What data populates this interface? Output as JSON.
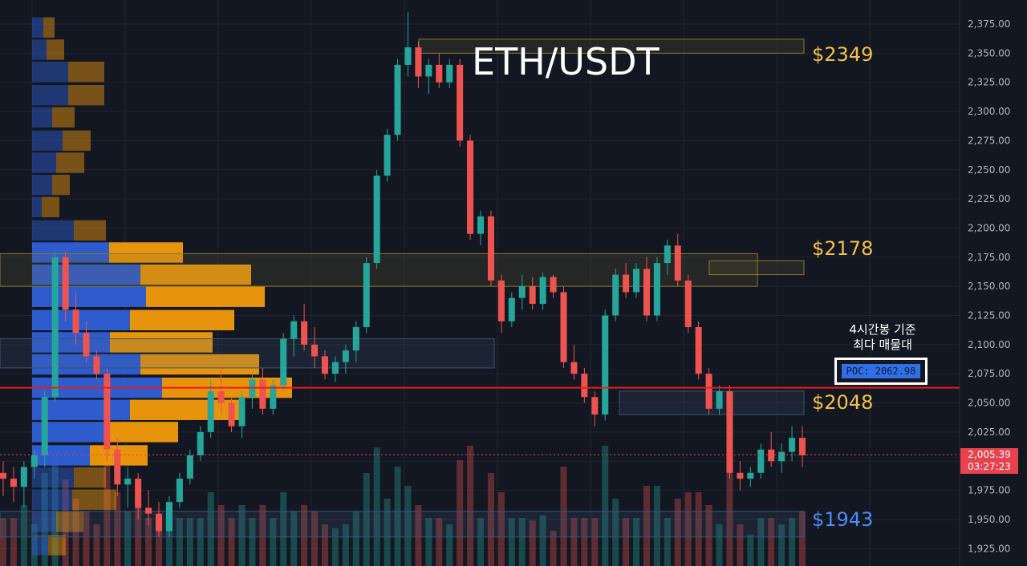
{
  "title": "ETH/USDT",
  "colors": {
    "background": "#131722",
    "grid": "#1f2431",
    "up": "#26a69a",
    "down": "#ef5350",
    "profile_buy": "#2f5fd8",
    "profile_sell": "#f29a0c",
    "poc_line": "#e81c1c",
    "level_gold": "#f5c042",
    "level_blue": "#4d8cf5",
    "axis_text": "#b2b5be"
  },
  "levels": [
    {
      "label": "$2349",
      "price": 2349,
      "color": "#f5c042"
    },
    {
      "label": "$2178",
      "price": 2178,
      "color": "#f5c042"
    },
    {
      "label": "$2048",
      "price": 2048,
      "color": "#f5c042"
    },
    {
      "label": "$1943",
      "price": 1943,
      "color": "#4d8cf5"
    }
  ],
  "poc": {
    "note_line1": "4시간봉 기준",
    "note_line2": "최다 매물대",
    "label": "POC: 2062.98",
    "price": 2062.98
  },
  "current": {
    "price_label": "2,005.39",
    "countdown": "03:27:23",
    "price": 2005.39
  },
  "chart_data": {
    "type": "candlestick",
    "title": "ETH/USDT",
    "ylim": [
      1915,
      2390
    ],
    "y_ticks": [
      "2,375.00",
      "2,350.00",
      "2,325.00",
      "2,300.00",
      "2,275.00",
      "2,250.00",
      "2,225.00",
      "2,200.00",
      "2,175.00",
      "2,150.00",
      "2,125.00",
      "2,100.00",
      "2,075.00",
      "2,050.00",
      "2,025.00",
      "2,000.00",
      "1,975.00",
      "1,950.00",
      "1,925.00"
    ],
    "y_tick_values": [
      2375,
      2350,
      2325,
      2300,
      2275,
      2250,
      2225,
      2200,
      2175,
      2150,
      2125,
      2100,
      2075,
      2050,
      2025,
      2000,
      1975,
      1950,
      1925
    ],
    "grid": true,
    "candles": [
      [
        1990,
        2000,
        1970,
        1985
      ],
      [
        1985,
        1995,
        1965,
        1978
      ],
      [
        1978,
        2000,
        1960,
        1995
      ],
      [
        1995,
        2010,
        1985,
        2005
      ],
      [
        2005,
        2060,
        1995,
        2055
      ],
      [
        2055,
        2180,
        2050,
        2175
      ],
      [
        2175,
        2180,
        2120,
        2130
      ],
      [
        2130,
        2145,
        2100,
        2110
      ],
      [
        2110,
        2120,
        2085,
        2090
      ],
      [
        2090,
        2095,
        2070,
        2075
      ],
      [
        2075,
        2080,
        2000,
        2010
      ],
      [
        2010,
        2020,
        1970,
        1980
      ],
      [
        1980,
        1995,
        1960,
        1985
      ],
      [
        1985,
        1990,
        1950,
        1960
      ],
      [
        1960,
        1975,
        1945,
        1955
      ],
      [
        1955,
        1965,
        1935,
        1940
      ],
      [
        1940,
        1970,
        1935,
        1965
      ],
      [
        1965,
        1990,
        1960,
        1985
      ],
      [
        1985,
        2010,
        1980,
        2005
      ],
      [
        2005,
        2030,
        2000,
        2025
      ],
      [
        2025,
        2070,
        2020,
        2060
      ],
      [
        2060,
        2080,
        2040,
        2050
      ],
      [
        2050,
        2055,
        2025,
        2030
      ],
      [
        2030,
        2060,
        2020,
        2055
      ],
      [
        2055,
        2075,
        2045,
        2070
      ],
      [
        2070,
        2080,
        2040,
        2045
      ],
      [
        2045,
        2070,
        2040,
        2065
      ],
      [
        2065,
        2110,
        2060,
        2105
      ],
      [
        2105,
        2125,
        2090,
        2120
      ],
      [
        2120,
        2135,
        2095,
        2100
      ],
      [
        2100,
        2115,
        2080,
        2090
      ],
      [
        2090,
        2095,
        2070,
        2075
      ],
      [
        2075,
        2090,
        2068,
        2085
      ],
      [
        2085,
        2100,
        2075,
        2095
      ],
      [
        2095,
        2120,
        2085,
        2115
      ],
      [
        2115,
        2175,
        2110,
        2170
      ],
      [
        2170,
        2250,
        2165,
        2245
      ],
      [
        2245,
        2285,
        2240,
        2280
      ],
      [
        2280,
        2345,
        2275,
        2340
      ],
      [
        2340,
        2385,
        2330,
        2355
      ],
      [
        2355,
        2360,
        2320,
        2330
      ],
      [
        2330,
        2345,
        2315,
        2340
      ],
      [
        2340,
        2350,
        2320,
        2325
      ],
      [
        2325,
        2345,
        2320,
        2340
      ],
      [
        2340,
        2345,
        2270,
        2275
      ],
      [
        2275,
        2280,
        2190,
        2195
      ],
      [
        2195,
        2215,
        2185,
        2210
      ],
      [
        2210,
        2215,
        2150,
        2155
      ],
      [
        2155,
        2160,
        2110,
        2120
      ],
      [
        2120,
        2145,
        2115,
        2140
      ],
      [
        2140,
        2160,
        2130,
        2150
      ],
      [
        2150,
        2158,
        2130,
        2135
      ],
      [
        2135,
        2162,
        2130,
        2158
      ],
      [
        2158,
        2160,
        2140,
        2145
      ],
      [
        2145,
        2150,
        2080,
        2085
      ],
      [
        2085,
        2100,
        2070,
        2075
      ],
      [
        2075,
        2080,
        2050,
        2055
      ],
      [
        2055,
        2060,
        2030,
        2040
      ],
      [
        2040,
        2130,
        2035,
        2125
      ],
      [
        2125,
        2165,
        2120,
        2160
      ],
      [
        2160,
        2170,
        2140,
        2145
      ],
      [
        2145,
        2170,
        2140,
        2165
      ],
      [
        2165,
        2175,
        2120,
        2125
      ],
      [
        2125,
        2175,
        2120,
        2170
      ],
      [
        2170,
        2190,
        2160,
        2185
      ],
      [
        2185,
        2195,
        2150,
        2155
      ],
      [
        2155,
        2160,
        2110,
        2115
      ],
      [
        2115,
        2120,
        2070,
        2075
      ],
      [
        2075,
        2080,
        2040,
        2045
      ],
      [
        2045,
        2065,
        2040,
        2060
      ],
      [
        2060,
        2065,
        1985,
        1990
      ],
      [
        1990,
        2000,
        1975,
        1985
      ],
      [
        1985,
        1995,
        1978,
        1990
      ],
      [
        1990,
        2015,
        1985,
        2010
      ],
      [
        2010,
        2025,
        1995,
        2000
      ],
      [
        2000,
        2015,
        1990,
        2008
      ],
      [
        2008,
        2030,
        2000,
        2020
      ],
      [
        2020,
        2030,
        1995,
        2005
      ]
    ],
    "volume_profile": [
      {
        "price": 2372,
        "buy": 14,
        "sell": 14
      },
      {
        "price": 2353,
        "buy": 18,
        "sell": 22
      },
      {
        "price": 2334,
        "buy": 45,
        "sell": 45
      },
      {
        "price": 2314,
        "buy": 45,
        "sell": 45
      },
      {
        "price": 2295,
        "buy": 25,
        "sell": 28
      },
      {
        "price": 2275,
        "buy": 38,
        "sell": 35
      },
      {
        "price": 2256,
        "buy": 30,
        "sell": 35
      },
      {
        "price": 2237,
        "buy": 25,
        "sell": 22
      },
      {
        "price": 2218,
        "buy": 12,
        "sell": 22
      },
      {
        "price": 2198,
        "buy": 52,
        "sell": 40
      },
      {
        "price": 2179,
        "buy": 96,
        "sell": 92
      },
      {
        "price": 2160,
        "buy": 135,
        "sell": 138
      },
      {
        "price": 2141,
        "buy": 142,
        "sell": 148
      },
      {
        "price": 2121,
        "buy": 122,
        "sell": 130
      },
      {
        "price": 2102,
        "buy": 97,
        "sell": 128
      },
      {
        "price": 2083,
        "buy": 135,
        "sell": 148
      },
      {
        "price": 2063,
        "buy": 162,
        "sell": 162
      },
      {
        "price": 2044,
        "buy": 122,
        "sell": 140
      },
      {
        "price": 2025,
        "buy": 90,
        "sell": 92
      },
      {
        "price": 2005,
        "buy": 72,
        "sell": 72
      },
      {
        "price": 1986,
        "buy": 52,
        "sell": 40
      },
      {
        "price": 1967,
        "buy": 50,
        "sell": 55
      },
      {
        "price": 1948,
        "buy": 30,
        "sell": 34
      },
      {
        "price": 1928,
        "buy": 20,
        "sell": 22
      }
    ],
    "zones": [
      {
        "from": 2350,
        "to": 2362,
        "color": "gold"
      },
      {
        "from": 2160,
        "to": 2172,
        "color": "gold"
      },
      {
        "from": 2150,
        "to": 2178,
        "color": "gold"
      },
      {
        "from": 2080,
        "to": 2105,
        "color": "blue"
      },
      {
        "from": 2040,
        "to": 2060,
        "color": "blue"
      },
      {
        "from": 1935,
        "to": 1957,
        "color": "blue"
      }
    ]
  }
}
